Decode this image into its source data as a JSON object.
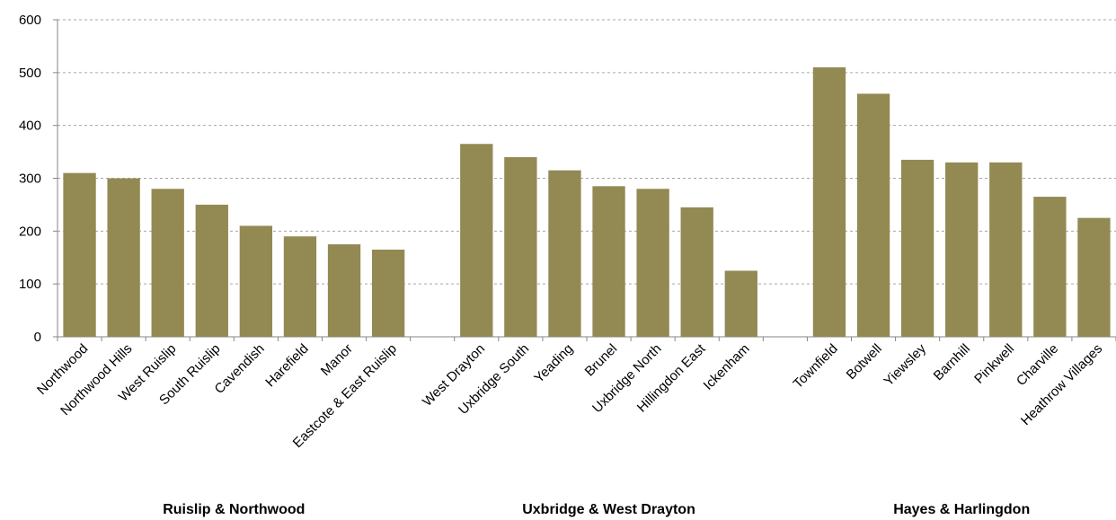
{
  "chart_data": {
    "type": "bar",
    "categories": [
      "Northwood",
      "Northwood Hills",
      "West Ruislip",
      "South Ruislip",
      "Cavendish",
      "Harefield",
      "Manor",
      "Eastcote & East Ruislip",
      null,
      "West Drayton",
      "Uxbridge South",
      "Yeading",
      "Brunel",
      "Uxbridge North",
      "Hillingdon East",
      "Ickenham",
      null,
      "Townfield",
      "Botwell",
      "Yiewsley",
      "Barnhill",
      "Pinkwell",
      "Charville",
      "Heathrow Villages"
    ],
    "values": [
      310,
      300,
      280,
      250,
      210,
      190,
      175,
      165,
      null,
      365,
      340,
      315,
      285,
      280,
      245,
      125,
      null,
      510,
      460,
      335,
      330,
      330,
      265,
      225
    ],
    "groups": [
      "Ruislip & Northwood",
      "Uxbridge & West Drayton",
      "Hayes & Harlingdon"
    ],
    "color": "#938953",
    "ylim": [
      0,
      600
    ],
    "yticks": [
      0,
      100,
      200,
      300,
      400,
      500,
      600
    ],
    "grid": true
  }
}
